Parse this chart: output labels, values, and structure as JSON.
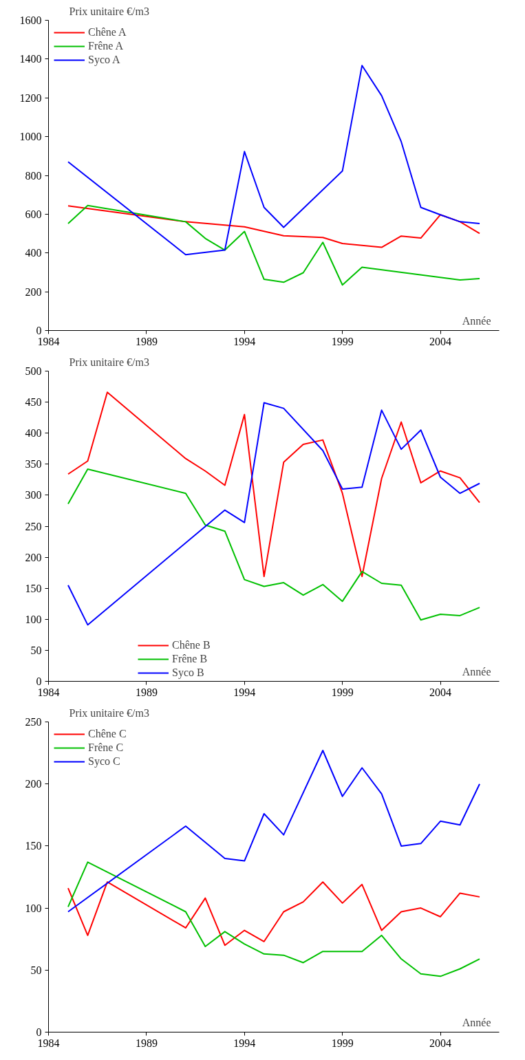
{
  "chart_data": [
    {
      "type": "line",
      "ylabel": "Prix unitaire €/m3",
      "xlabel": "Année",
      "xlim": [
        1984,
        2007
      ],
      "ylim": [
        0,
        1600
      ],
      "xticks": [
        1984,
        1989,
        1994,
        1999,
        2004
      ],
      "yticks": [
        0,
        200,
        400,
        600,
        800,
        1000,
        1200,
        1400,
        1600
      ],
      "grid": false,
      "legend": "top left",
      "marker": "none",
      "line_style": "solid",
      "series": [
        {
          "name": "Chêne A",
          "color": "#ff0000",
          "x": [
            1985,
            1991,
            1993,
            1994,
            1996,
            1998,
            1999,
            2001,
            2002,
            2003,
            2004,
            2005,
            2006
          ],
          "values": [
            643,
            561,
            544,
            535,
            489,
            480,
            449,
            429,
            487,
            477,
            597,
            561,
            501
          ]
        },
        {
          "name": "Frêne A",
          "color": "#00c000",
          "x": [
            1985,
            1986,
            1991,
            1992,
            1993,
            1994,
            1995,
            1996,
            1997,
            1998,
            1999,
            2000,
            2005,
            2006
          ],
          "values": [
            552,
            645,
            561,
            475,
            415,
            511,
            264,
            249,
            298,
            455,
            235,
            326,
            261,
            268
          ]
        },
        {
          "name": "Syco A",
          "color": "#0000ff",
          "x": [
            1985,
            1991,
            1993,
            1994,
            1995,
            1996,
            1999,
            2000,
            2001,
            2002,
            2003,
            2004,
            2005,
            2006
          ],
          "values": [
            870,
            391,
            415,
            923,
            635,
            532,
            823,
            1367,
            1211,
            974,
            635,
            597,
            561,
            552
          ]
        }
      ]
    },
    {
      "type": "line",
      "ylabel": "Prix unitaire €/m3",
      "xlabel": "Année",
      "xlim": [
        1984,
        2007
      ],
      "ylim": [
        0,
        500
      ],
      "xticks": [
        1984,
        1989,
        1994,
        1999,
        2004
      ],
      "yticks": [
        0,
        50,
        100,
        150,
        200,
        250,
        300,
        350,
        400,
        450,
        500
      ],
      "grid": false,
      "legend": "bottom left",
      "marker": "none",
      "line_style": "solid",
      "series": [
        {
          "name": "Chêne B",
          "color": "#ff0000",
          "x": [
            1985,
            1986,
            1987,
            1991,
            1992,
            1993,
            1994,
            1995,
            1996,
            1997,
            1998,
            1999,
            2000,
            2001,
            2002,
            2003,
            2004,
            2005,
            2006
          ],
          "values": [
            334,
            355,
            466,
            359,
            339,
            316,
            430,
            169,
            353,
            382,
            389,
            303,
            169,
            327,
            418,
            320,
            339,
            328,
            288
          ]
        },
        {
          "name": "Frêne B",
          "color": "#00c000",
          "x": [
            1985,
            1986,
            1991,
            1992,
            1993,
            1994,
            1995,
            1996,
            1997,
            1998,
            1999,
            2000,
            2001,
            2002,
            2003,
            2004,
            2005,
            2006
          ],
          "values": [
            286,
            342,
            303,
            252,
            242,
            164,
            153,
            159,
            139,
            156,
            129,
            177,
            158,
            155,
            99,
            108,
            106,
            119
          ]
        },
        {
          "name": "Syco B",
          "color": "#0000ff",
          "x": [
            1985,
            1986,
            1993,
            1994,
            1995,
            1996,
            1998,
            1999,
            2000,
            2001,
            2002,
            2003,
            2004,
            2005,
            2006
          ],
          "values": [
            155,
            91,
            276,
            256,
            449,
            440,
            372,
            310,
            313,
            437,
            374,
            405,
            329,
            303,
            319
          ]
        }
      ]
    },
    {
      "type": "line",
      "ylabel": "Prix unitaire €/m3",
      "xlabel": "Année",
      "xlim": [
        1984,
        2007
      ],
      "ylim": [
        0,
        250
      ],
      "xticks": [
        1984,
        1989,
        1994,
        1999,
        2004
      ],
      "yticks": [
        0,
        50,
        100,
        150,
        200,
        250
      ],
      "grid": false,
      "legend": "top left",
      "marker": "none",
      "line_style": "solid",
      "series": [
        {
          "name": "Chêne C",
          "color": "#ff0000",
          "x": [
            1985,
            1986,
            1987,
            1991,
            1992,
            1993,
            1994,
            1995,
            1996,
            1997,
            1998,
            1999,
            2000,
            2001,
            2002,
            2003,
            2004,
            2005,
            2006
          ],
          "values": [
            116,
            78,
            121,
            84,
            108,
            70,
            82,
            73,
            97,
            105,
            121,
            104,
            119,
            82,
            97,
            100,
            93,
            112,
            109
          ]
        },
        {
          "name": "Frêne C",
          "color": "#00c000",
          "x": [
            1985,
            1986,
            1991,
            1992,
            1993,
            1994,
            1995,
            1996,
            1997,
            1998,
            1999,
            2000,
            2001,
            2002,
            2003,
            2004,
            2005,
            2006
          ],
          "values": [
            101,
            137,
            97,
            69,
            81,
            71,
            63,
            62,
            56,
            65,
            65,
            65,
            78,
            59,
            47,
            45,
            51,
            59
          ]
        },
        {
          "name": "Syco C",
          "color": "#0000ff",
          "x": [
            1985,
            1991,
            1993,
            1994,
            1995,
            1996,
            1998,
            1999,
            2000,
            2001,
            2002,
            2003,
            2004,
            2005,
            2006
          ],
          "values": [
            97,
            166,
            140,
            138,
            176,
            159,
            227,
            190,
            213,
            192,
            150,
            152,
            170,
            167,
            200
          ]
        }
      ]
    }
  ]
}
